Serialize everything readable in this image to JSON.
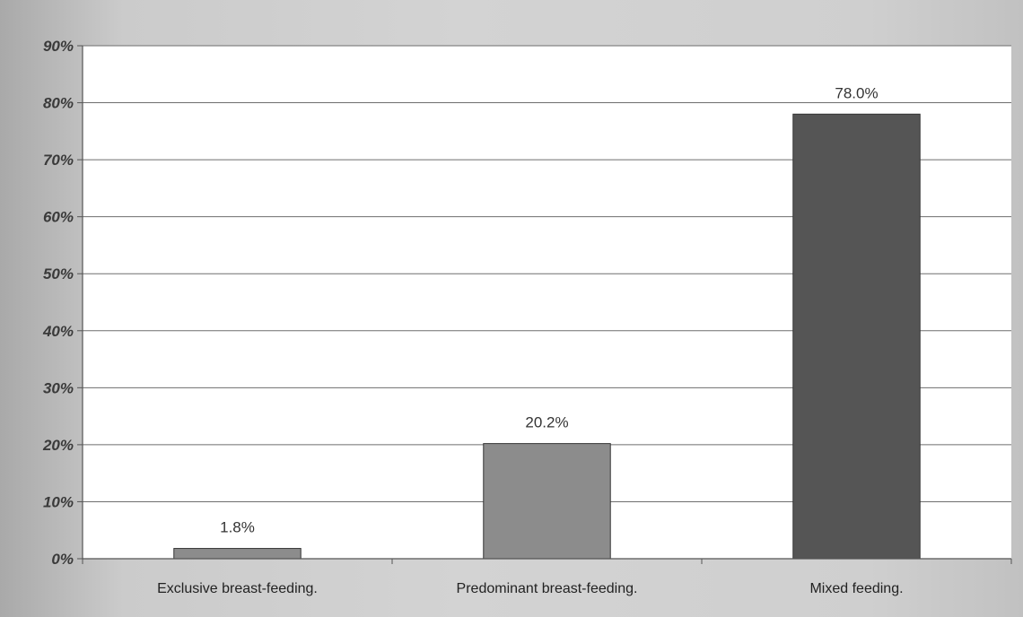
{
  "chart_data": {
    "type": "bar",
    "categories": [
      "Exclusive breast-feeding.",
      "Predominant breast-feeding.",
      "Mixed feeding."
    ],
    "values": [
      1.8,
      20.2,
      78.0
    ],
    "data_labels": [
      "1.8%",
      "20.2%",
      "78.0%"
    ],
    "ylim": [
      0,
      90
    ],
    "yticks": [
      0,
      10,
      20,
      30,
      40,
      50,
      60,
      70,
      80,
      90
    ],
    "ytick_labels": [
      "0%",
      "10%",
      "20%",
      "30%",
      "40%",
      "50%",
      "60%",
      "70%",
      "80%",
      "90%"
    ],
    "grid": true,
    "legend": "none",
    "colors": {
      "bars": [
        "#8c8c8c",
        "#8c8c8c",
        "#555555"
      ],
      "plot_background": "#ffffff",
      "gridline": "#6e6e6e"
    }
  }
}
